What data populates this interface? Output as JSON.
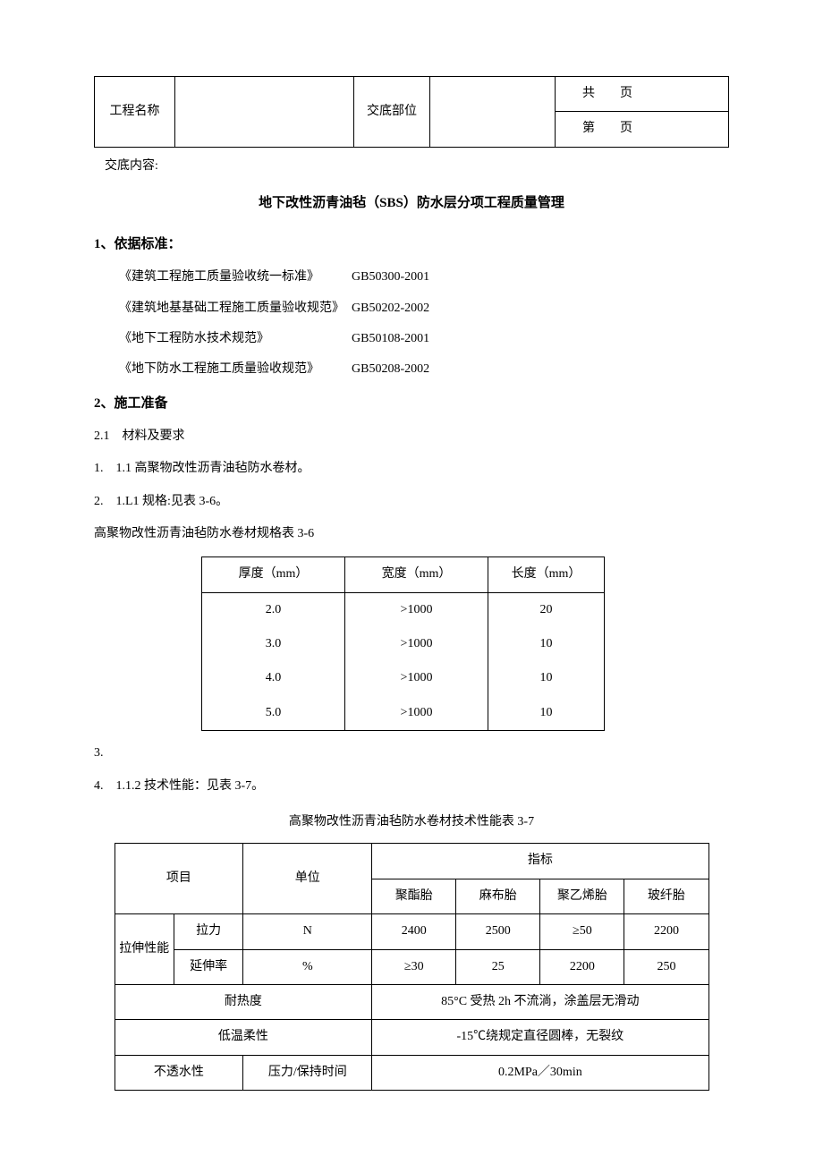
{
  "header": {
    "col1_label": "工程名称",
    "col2_value": "",
    "col3_label": "交底部位",
    "col4_value": "",
    "page_top": "共　　页",
    "page_bottom": "第　　页",
    "content_label": "交底内容:"
  },
  "title": "地下改性沥青油毡（SBS）防水层分项工程质量管理",
  "section1": {
    "heading": "1、依据标准：",
    "standards": [
      {
        "name": "《建筑工程施工质量验收统一标准》",
        "code": "GB50300-2001"
      },
      {
        "name": "《建筑地基基础工程施工质量验收规范》",
        "code": "GB50202-2002"
      },
      {
        "name": "《地下工程防水技术规范》",
        "code": "GB50108-2001"
      },
      {
        "name": "《地下防水工程施工质量验收规范》",
        "code": "GB50208-2002"
      }
    ]
  },
  "section2": {
    "heading": "2、施工准备",
    "sub21": "2.1　材料及要求",
    "line1": "1. 1.1 高聚物改性沥青油毡防水卷材。",
    "line2": "2. 1.L1 规格:见表 3-6。",
    "table36_caption": "高聚物改性沥青油毡防水卷材规格表 3-6",
    "table36": {
      "headers": [
        "厚度（mm）",
        "宽度（mm）",
        "长度（mm）"
      ],
      "rows": [
        [
          "2.0",
          ">1000",
          "20"
        ],
        [
          "3.0",
          ">1000",
          "10"
        ],
        [
          "4.0",
          ">1000",
          "10"
        ],
        [
          "5.0",
          ">1000",
          "10"
        ]
      ]
    },
    "line3": "3.",
    "line4": "4. 1.1.2 技术性能：见表 3-7。",
    "table37_caption": "高聚物改性沥青油毡防水卷材技术性能表 3-7",
    "table37": {
      "header_project": "项目",
      "header_unit": "单位",
      "header_indicator": "指标",
      "sub_indicators": [
        "聚酯胎",
        "麻布胎",
        "聚乙烯胎",
        "玻纤胎"
      ],
      "row_tensile_group": "拉伸性能",
      "row_tensile": {
        "label": "拉力",
        "unit": "N",
        "vals": [
          "2400",
          "2500",
          "≥50",
          "2200"
        ]
      },
      "row_elong": {
        "label": "延伸率",
        "unit": "%",
        "vals": [
          "≥30",
          "25",
          "2200",
          "250"
        ]
      },
      "row_heat": {
        "label": "耐热度",
        "val": "85°C 受热 2h 不流淌，涂盖层无滑动"
      },
      "row_cold": {
        "label": "低温柔性",
        "val": "-15℃绕规定直径圆棒，无裂纹"
      },
      "row_water": {
        "label1": "不透水性",
        "label2": "压力/保持时间",
        "val": "0.2MPa／30min"
      }
    }
  }
}
